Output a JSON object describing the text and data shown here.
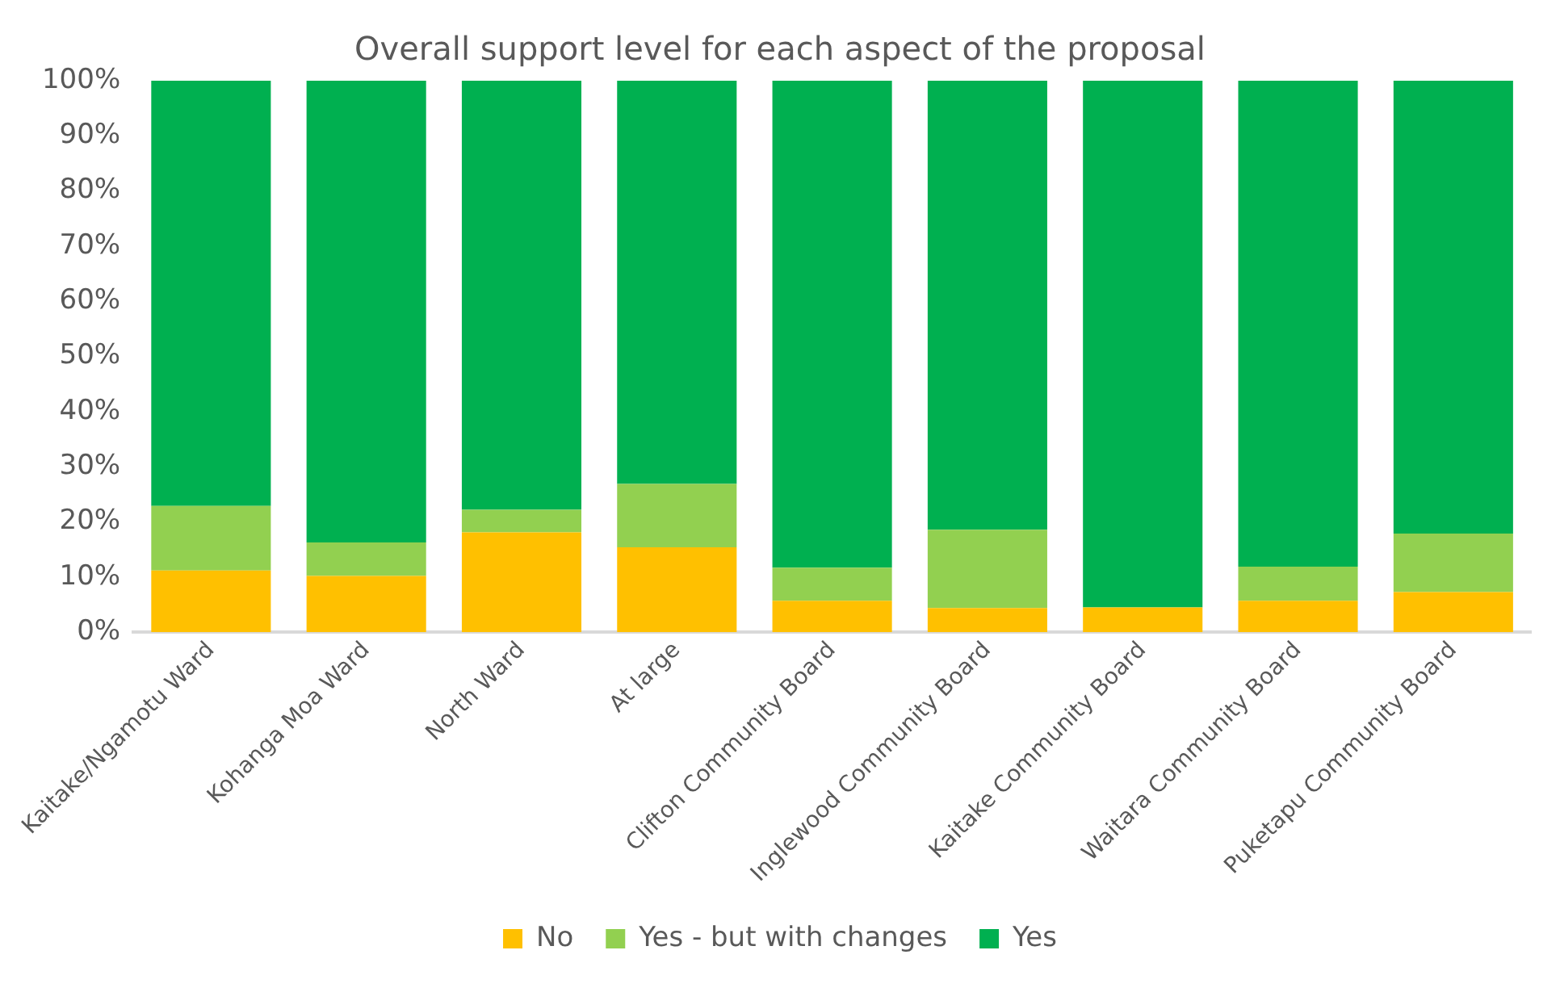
{
  "chart_data": {
    "type": "bar",
    "title": "Overall support level for each aspect of the proposal",
    "categories": [
      "Kaitake/Ngamotu Ward",
      "Kohanga Moa Ward",
      "North Ward",
      "At large",
      "Clifton Community Board",
      "Inglewood Community Board",
      "Kaitake Community Board",
      "Waitara Community Board",
      "Puketapu Community Board"
    ],
    "series": [
      {
        "name": "No",
        "color": "#ffc000",
        "values": [
          11.2,
          10.2,
          18.1,
          15.4,
          5.7,
          4.4,
          4.5,
          5.7,
          7.3
        ]
      },
      {
        "name": "Yes - but with changes",
        "color": "#92d050",
        "values": [
          11.7,
          6.1,
          4.1,
          11.5,
          6.0,
          14.2,
          0,
          6.2,
          10.6
        ]
      },
      {
        "name": "Yes",
        "color": "#00b050",
        "values": [
          77.1,
          83.7,
          77.8,
          73.1,
          88.3,
          81.4,
          95.5,
          88.1,
          82.1
        ]
      }
    ],
    "stacked": true,
    "ylim": [
      0,
      100
    ],
    "yticks": [
      {
        "value": 0,
        "label": "0%"
      },
      {
        "value": 10,
        "label": "10%"
      },
      {
        "value": 20,
        "label": "20%"
      },
      {
        "value": 30,
        "label": "30%"
      },
      {
        "value": 40,
        "label": "40%"
      },
      {
        "value": 50,
        "label": "50%"
      },
      {
        "value": 60,
        "label": "60%"
      },
      {
        "value": 70,
        "label": "70%"
      },
      {
        "value": 80,
        "label": "80%"
      },
      {
        "value": 90,
        "label": "90%"
      },
      {
        "value": 100,
        "label": "100%"
      }
    ],
    "grid": false,
    "legend": "bottom"
  }
}
